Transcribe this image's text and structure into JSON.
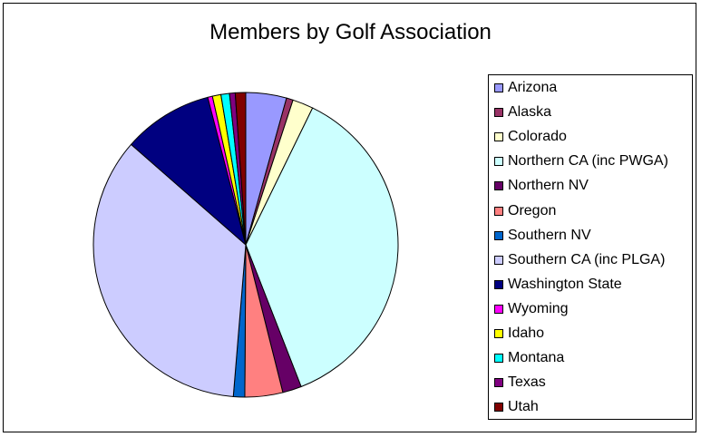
{
  "chart_data": {
    "type": "pie",
    "title": "Members by Golf Association",
    "start_angle_deg": 0,
    "direction": "clockwise",
    "legend_position": "right",
    "slices": [
      {
        "label": "Arizona",
        "value": 4.3,
        "color": "#9999FF"
      },
      {
        "label": "Alaska",
        "value": 0.7,
        "color": "#993366"
      },
      {
        "label": "Colorado",
        "value": 2.2,
        "color": "#FFFFCC"
      },
      {
        "label": "Northern CA (inc PWGA)",
        "value": 36.7,
        "color": "#CCFFFF"
      },
      {
        "label": "Northern NV",
        "value": 2.0,
        "color": "#660066"
      },
      {
        "label": "Oregon",
        "value": 4.0,
        "color": "#FF8080"
      },
      {
        "label": "Southern NV",
        "value": 1.2,
        "color": "#0066CC"
      },
      {
        "label": "Southern CA (inc PLGA)",
        "value": 35.0,
        "color": "#CCCCFF"
      },
      {
        "label": "Washington State",
        "value": 9.5,
        "color": "#000080"
      },
      {
        "label": "Wyoming",
        "value": 0.5,
        "color": "#FF00FF"
      },
      {
        "label": "Idaho",
        "value": 0.9,
        "color": "#FFFF00"
      },
      {
        "label": "Montana",
        "value": 0.9,
        "color": "#00FFFF"
      },
      {
        "label": "Texas",
        "value": 0.6,
        "color": "#800080"
      },
      {
        "label": "Utah",
        "value": 1.1,
        "color": "#800000"
      }
    ]
  }
}
